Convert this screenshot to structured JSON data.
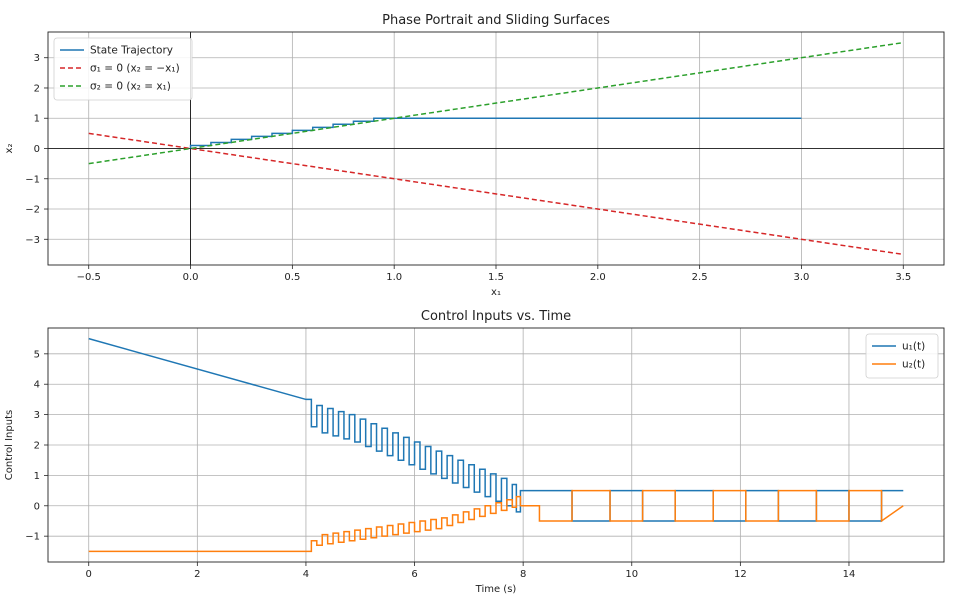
{
  "chart_data": [
    {
      "type": "line",
      "title": "Phase Portrait and Sliding Surfaces",
      "xlabel": "x₁",
      "ylabel": "x₂",
      "xlim": [
        -0.7,
        3.7
      ],
      "ylim": [
        -3.85,
        3.85
      ],
      "xticks": [
        -0.5,
        0.0,
        0.5,
        1.0,
        1.5,
        2.0,
        2.5,
        3.0,
        3.5
      ],
      "xtick_labels": [
        "−0.5",
        "0.0",
        "0.5",
        "1.0",
        "1.5",
        "2.0",
        "2.5",
        "3.0",
        "3.5"
      ],
      "yticks": [
        -3,
        -2,
        -1,
        0,
        1,
        2,
        3
      ],
      "ytick_labels": [
        "−3",
        "−2",
        "−1",
        "0",
        "1",
        "2",
        "3"
      ],
      "grid": true,
      "legend": "top-left",
      "zero_lines": true,
      "series": [
        {
          "name": "State Trajectory",
          "color": "#1f77b4",
          "style": "solid",
          "x": [
            3.0,
            1.0,
            0.9,
            0.8,
            0.7,
            0.6,
            0.5,
            0.4,
            0.3,
            0.2,
            0.1,
            0.0
          ],
          "y": [
            1.0,
            1.0,
            0.9,
            0.8,
            0.7,
            0.6,
            0.5,
            0.4,
            0.3,
            0.2,
            0.1,
            0.0
          ]
        },
        {
          "name": "σ₁ = 0 (x₂ = −x₁)",
          "color": "#d62728",
          "style": "dashed",
          "x": [
            -0.5,
            3.5
          ],
          "y": [
            0.5,
            -3.5
          ]
        },
        {
          "name": "σ₂ = 0 (x₂ = x₁)",
          "color": "#2ca02c",
          "style": "dashed",
          "x": [
            -0.5,
            3.5
          ],
          "y": [
            -0.5,
            3.5
          ]
        }
      ]
    },
    {
      "type": "line",
      "title": "Control Inputs vs. Time",
      "xlabel": "Time (s)",
      "ylabel": "Control Inputs",
      "xlim": [
        -0.75,
        15.75
      ],
      "ylim": [
        -1.85,
        5.85
      ],
      "xticks": [
        0,
        2,
        4,
        6,
        8,
        10,
        12,
        14
      ],
      "xtick_labels": [
        "0",
        "2",
        "4",
        "6",
        "8",
        "10",
        "12",
        "14"
      ],
      "yticks": [
        -1,
        0,
        1,
        2,
        3,
        4,
        5
      ],
      "ytick_labels": [
        "−1",
        "0",
        "1",
        "2",
        "3",
        "4",
        "5"
      ],
      "grid": true,
      "legend": "top-right",
      "series": [
        {
          "name": "u₁(t)",
          "color": "#1f77b4",
          "style": "solid",
          "x": [
            0,
            4.0,
            4.2,
            4.4,
            4.6,
            4.8,
            5.0,
            5.2,
            5.4,
            5.6,
            5.8,
            6.0,
            6.2,
            6.4,
            6.6,
            6.8,
            7.0,
            7.2,
            7.4,
            7.6,
            7.8,
            7.95,
            8.3,
            8.9,
            9.6,
            10.2,
            10.8,
            11.5,
            12.1,
            12.7,
            13.4,
            14.0,
            14.6,
            15.0
          ],
          "y": [
            5.5,
            3.5,
            3.3,
            3.2,
            3.1,
            3.0,
            2.85,
            2.7,
            2.55,
            2.4,
            2.25,
            2.1,
            1.95,
            1.8,
            1.65,
            1.5,
            1.35,
            1.2,
            1.05,
            0.9,
            0.7,
            0.5,
            0.5,
            -0.5,
            0.5,
            -0.5,
            0.5,
            -0.5,
            0.5,
            -0.5,
            0.5,
            -0.5,
            0.5,
            0.5
          ]
        },
        {
          "name": "u₂(t)",
          "color": "#ff7f0e",
          "style": "solid",
          "x": [
            0,
            4.0,
            4.2,
            4.4,
            4.6,
            4.8,
            5.0,
            5.2,
            5.4,
            5.6,
            5.8,
            6.0,
            6.2,
            6.4,
            6.6,
            6.8,
            7.0,
            7.2,
            7.4,
            7.6,
            7.8,
            7.95,
            8.3,
            8.9,
            9.6,
            10.2,
            10.8,
            11.5,
            12.1,
            12.7,
            13.4,
            14.0,
            14.6,
            15.0
          ],
          "y": [
            -1.5,
            -1.5,
            -1.3,
            -1.25,
            -1.2,
            -1.15,
            -1.1,
            -1.05,
            -1.0,
            -0.95,
            -0.9,
            -0.85,
            -0.8,
            -0.75,
            -0.65,
            -0.55,
            -0.45,
            -0.35,
            -0.25,
            -0.15,
            -0.05,
            0.0,
            -0.5,
            0.5,
            -0.5,
            0.5,
            -0.5,
            0.5,
            -0.5,
            0.5,
            -0.5,
            0.5,
            -0.5,
            0.0
          ]
        }
      ]
    }
  ]
}
